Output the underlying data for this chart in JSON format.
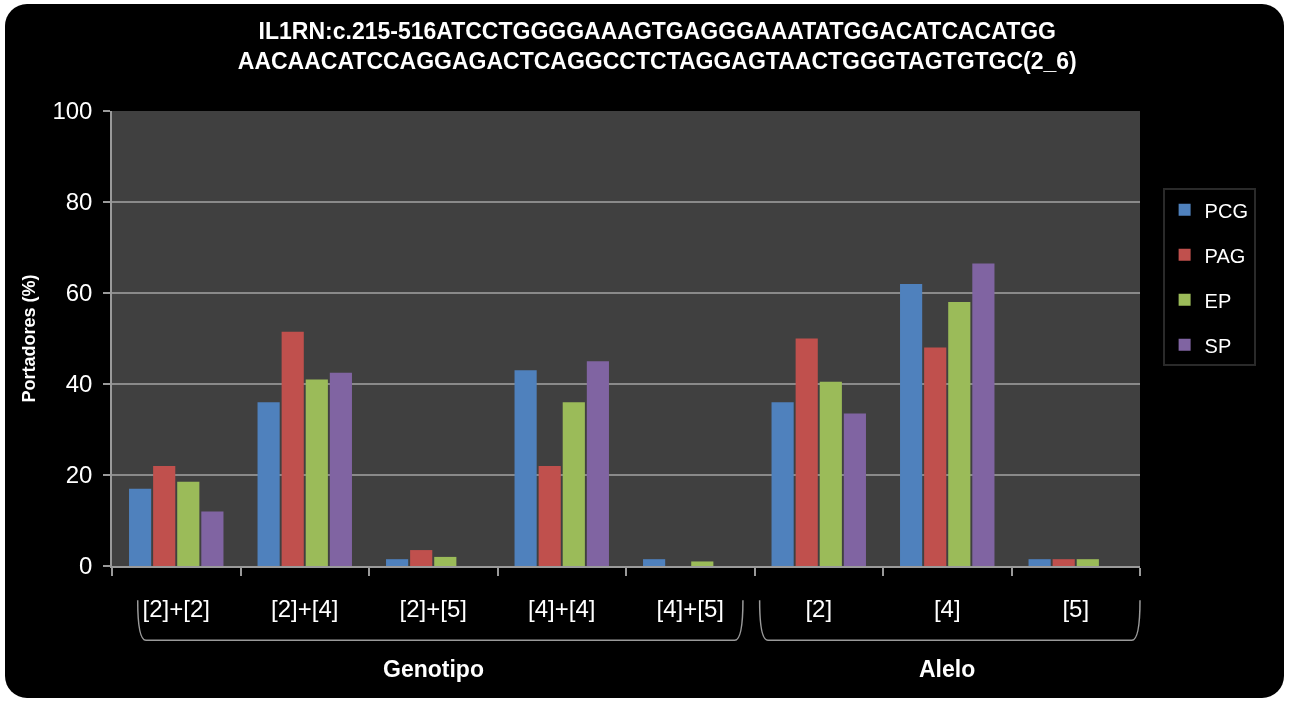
{
  "chart_data": {
    "type": "bar",
    "title": "IL1RN:c.215-516ATCCTGGGGAAAGTGAGGGAAATATGGACATCACATGG\nAACAACATCCAGGAGACTCAGGCCTCTAGGAGTAACTGGGTAGTGTGC(2_6)",
    "ylabel": "Portadores (%)",
    "categories": [
      "[2]+[2]",
      "[2]+[4]",
      "[2]+[5]",
      "[4]+[4]",
      "[4]+[5]",
      "[2]",
      "[4]",
      "[5]"
    ],
    "series": [
      {
        "name": "PCG",
        "color": "#4f81bd",
        "values": [
          17,
          36,
          1.5,
          43,
          1.5,
          36,
          62,
          1.5
        ]
      },
      {
        "name": "PAG",
        "color": "#c0504d",
        "values": [
          22,
          51.5,
          3.5,
          22,
          0,
          50,
          48,
          1.5
        ]
      },
      {
        "name": "EP",
        "color": "#9bbb59",
        "values": [
          18.5,
          41,
          2,
          36,
          1,
          40.5,
          58,
          1.5
        ]
      },
      {
        "name": "SP",
        "color": "#8064a2",
        "values": [
          12,
          42.5,
          0,
          45,
          0,
          33.5,
          66.5,
          0
        ]
      }
    ],
    "ylim": [
      0,
      100
    ],
    "yticks": [
      0,
      20,
      40,
      60,
      80,
      100
    ],
    "grid": "y",
    "legend": "right",
    "annotations": [
      "Genotipo",
      "Alelo"
    ]
  }
}
